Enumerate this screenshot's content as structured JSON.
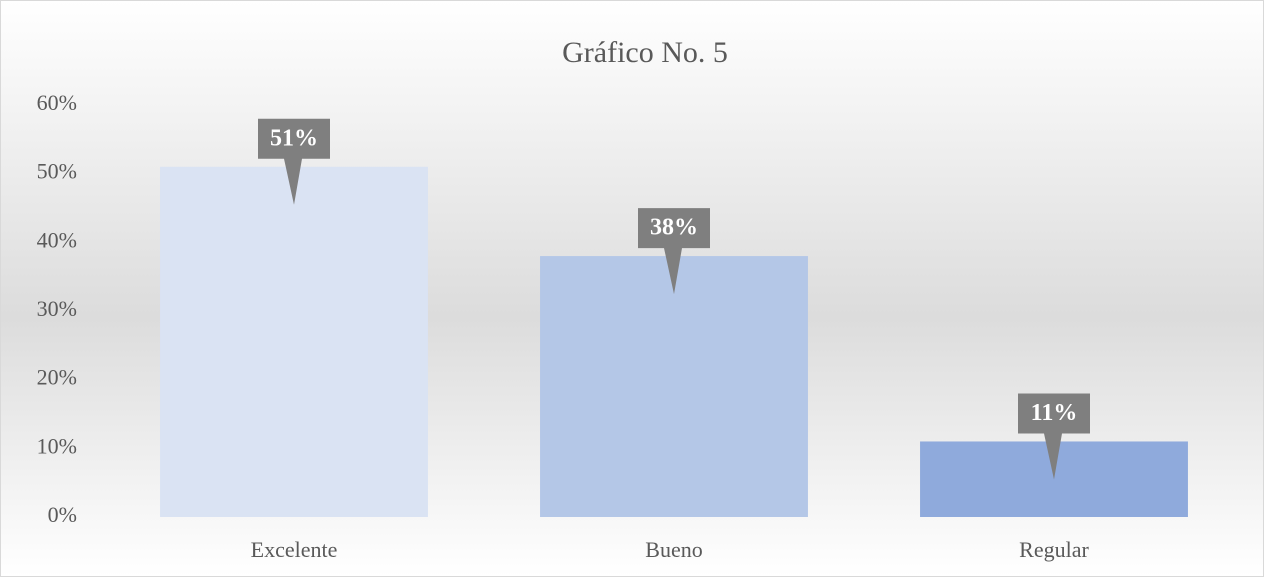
{
  "chart_data": {
    "type": "bar",
    "title": "Gráfico No. 5",
    "categories": [
      "Excelente",
      "Bueno",
      "Regular"
    ],
    "values": [
      51,
      38,
      11
    ],
    "value_labels": [
      "51%",
      "38%",
      "11%"
    ],
    "colors": [
      "#dae3f3",
      "#b4c7e7",
      "#8faadc"
    ],
    "ylim": [
      0,
      60
    ],
    "yticks": [
      {
        "value": 0,
        "label": "0%"
      },
      {
        "value": 10,
        "label": "10%"
      },
      {
        "value": 20,
        "label": "20%"
      },
      {
        "value": 30,
        "label": "30%"
      },
      {
        "value": 40,
        "label": "40%"
      },
      {
        "value": 50,
        "label": "50%"
      },
      {
        "value": 60,
        "label": "60%"
      }
    ],
    "grid": false
  }
}
